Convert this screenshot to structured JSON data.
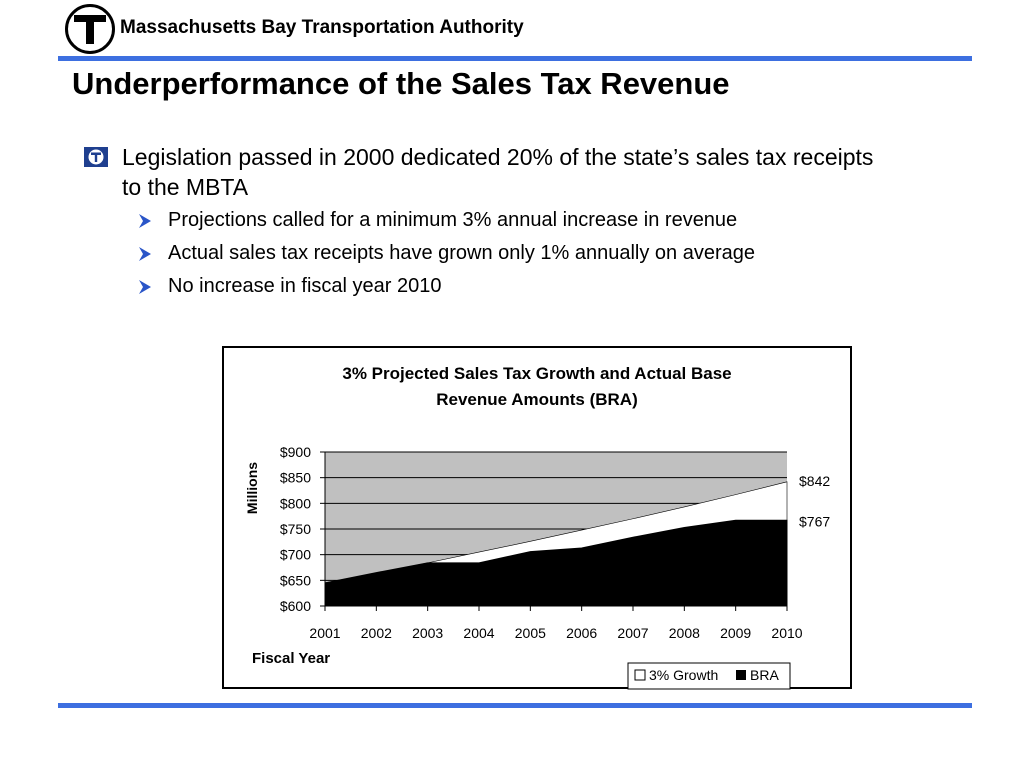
{
  "header": {
    "org_name": "Massachusetts Bay Transportation Authority",
    "logo_letter": "T"
  },
  "slide": {
    "title": "Underperformance of the Sales Tax Revenue",
    "bullet": "Legislation passed in 2000 dedicated 20% of the state’s sales tax receipts to the MBTA",
    "sub_bullets": [
      "Projections called for a minimum 3% annual increase in revenue",
      "Actual sales tax receipts have grown only 1% annually on average",
      "No increase in fiscal year 2010"
    ]
  },
  "colors": {
    "accent": "#3d6fe0",
    "plot_area": "#c0c0c0",
    "bra_fill": "#000000",
    "growth_fill": "#ffffff"
  },
  "chart_data": {
    "type": "area",
    "title": "3% Projected Sales Tax Growth and Actual Base Revenue Amounts (BRA)",
    "title_lines": [
      "3% Projected Sales Tax Growth and Actual Base",
      "Revenue Amounts (BRA)"
    ],
    "xlabel": "Fiscal Year",
    "ylabel": "Millions",
    "x": [
      "2001",
      "2002",
      "2003",
      "2004",
      "2005",
      "2006",
      "2007",
      "2008",
      "2009",
      "2010"
    ],
    "ylim": [
      600,
      900
    ],
    "yticks": [
      600,
      650,
      700,
      750,
      800,
      850,
      900
    ],
    "ytick_labels": [
      "$600",
      "$650",
      "$700",
      "$750",
      "$800",
      "$850",
      "$900"
    ],
    "grid": true,
    "legend_position": "bottom-right",
    "series": [
      {
        "name": "3% Growth",
        "values": [
          645,
          664,
          684,
          705,
          726,
          748,
          770,
          793,
          817,
          842
        ],
        "color": "#ffffff"
      },
      {
        "name": "BRA",
        "values": [
          645,
          665,
          684,
          684,
          706,
          713,
          734,
          753,
          767,
          767
        ],
        "color": "#000000"
      }
    ],
    "annotations": [
      {
        "text": "$842",
        "series": "3% Growth",
        "x": "2010",
        "value": 842
      },
      {
        "text": "$767",
        "series": "BRA",
        "x": "2010",
        "value": 767
      }
    ]
  }
}
